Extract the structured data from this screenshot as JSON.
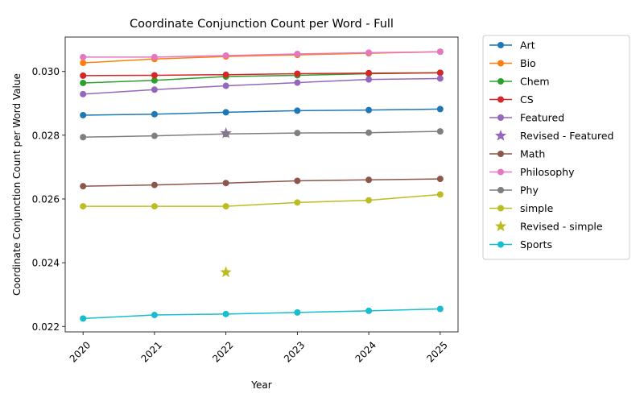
{
  "chart_data": {
    "type": "line",
    "title": "Coordinate Conjunction Count per Word - Full",
    "xlabel": "Year",
    "ylabel": "Coordinate Conjunction Count per Word Value",
    "x": [
      2020,
      2021,
      2022,
      2023,
      2024,
      2025
    ],
    "x_tick_labels": [
      "2020",
      "2021",
      "2022",
      "2023",
      "2024",
      "2025"
    ],
    "xlim": [
      2019.75,
      2025.25
    ],
    "ylim": [
      0.02183,
      0.03108
    ],
    "y_ticks": [
      0.022,
      0.024,
      0.026,
      0.028,
      0.03
    ],
    "y_tick_labels": [
      "0.022",
      "0.024",
      "0.026",
      "0.028",
      "0.030"
    ],
    "grid": false,
    "legend_placement": "outside right, top",
    "series": [
      {
        "name": "Art",
        "color": "#1f77b4",
        "marker": "circle",
        "kind": "line",
        "values": [
          0.02863,
          0.02866,
          0.02872,
          0.02877,
          0.02879,
          0.02882
        ]
      },
      {
        "name": "Bio",
        "color": "#ff7f0e",
        "marker": "circle",
        "kind": "line",
        "values": [
          0.03027,
          0.03039,
          0.03047,
          0.03052,
          0.03057,
          0.03062
        ]
      },
      {
        "name": "Chem",
        "color": "#2ca02c",
        "marker": "circle",
        "kind": "line",
        "values": [
          0.02964,
          0.02972,
          0.02984,
          0.02988,
          0.02993,
          0.02996
        ]
      },
      {
        "name": "CS",
        "color": "#d62728",
        "marker": "circle",
        "kind": "line",
        "values": [
          0.02987,
          0.02988,
          0.0299,
          0.02993,
          0.02995,
          0.02996
        ]
      },
      {
        "name": "Featured",
        "color": "#9467bd",
        "marker": "circle",
        "kind": "line",
        "values": [
          0.02929,
          0.02943,
          0.02955,
          0.02965,
          0.02975,
          0.02978
        ]
      },
      {
        "name": "Revised - Featured",
        "color": "#9467bd",
        "marker": "star",
        "kind": "point",
        "points": [
          {
            "x": 2022,
            "y": 0.02806
          }
        ]
      },
      {
        "name": "Math",
        "color": "#8c564b",
        "marker": "circle",
        "kind": "line",
        "values": [
          0.0264,
          0.02644,
          0.0265,
          0.02657,
          0.0266,
          0.02663
        ]
      },
      {
        "name": "Philosophy",
        "color": "#e377c2",
        "marker": "circle",
        "kind": "line",
        "values": [
          0.03045,
          0.03045,
          0.0305,
          0.03055,
          0.03059,
          0.03062
        ]
      },
      {
        "name": "Phy",
        "color": "#7f7f7f",
        "marker": "circle",
        "kind": "line",
        "values": [
          0.02794,
          0.02798,
          0.02804,
          0.02807,
          0.02808,
          0.02812
        ]
      },
      {
        "name": "simple",
        "color": "#bcbd22",
        "marker": "circle",
        "kind": "line",
        "values": [
          0.02577,
          0.02577,
          0.02577,
          0.02589,
          0.02596,
          0.02614
        ]
      },
      {
        "name": "Revised - simple",
        "color": "#bcbd22",
        "marker": "star",
        "kind": "point",
        "points": [
          {
            "x": 2022,
            "y": 0.0237
          }
        ]
      },
      {
        "name": "Sports",
        "color": "#17becf",
        "marker": "circle",
        "kind": "line",
        "values": [
          0.02225,
          0.02236,
          0.02239,
          0.02244,
          0.02249,
          0.02255
        ]
      }
    ]
  }
}
